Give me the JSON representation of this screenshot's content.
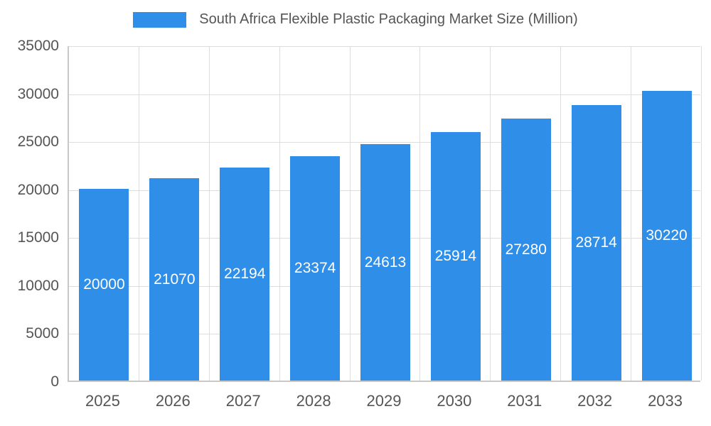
{
  "chart_data": {
    "type": "bar",
    "title": "South Africa Flexible Plastic Packaging Market Size (Million)",
    "categories": [
      "2025",
      "2026",
      "2027",
      "2028",
      "2029",
      "2030",
      "2031",
      "2032",
      "2033"
    ],
    "values": [
      20000,
      21070,
      22194,
      23374,
      24613,
      25914,
      27280,
      28714,
      30220
    ],
    "xlabel": "",
    "ylabel": "",
    "ylim": [
      0,
      35000
    ],
    "ytick_step": 5000,
    "ytick_labels": [
      "0",
      "5000",
      "10000",
      "15000",
      "20000",
      "25000",
      "30000",
      "35000"
    ],
    "grid": true,
    "legend_position": "top",
    "bar_color": "#2f8fe8",
    "value_label_color": "#ffffff",
    "axis_text_color": "#555555",
    "gridline_color": "#dddddd",
    "background_color": "#ffffff"
  }
}
